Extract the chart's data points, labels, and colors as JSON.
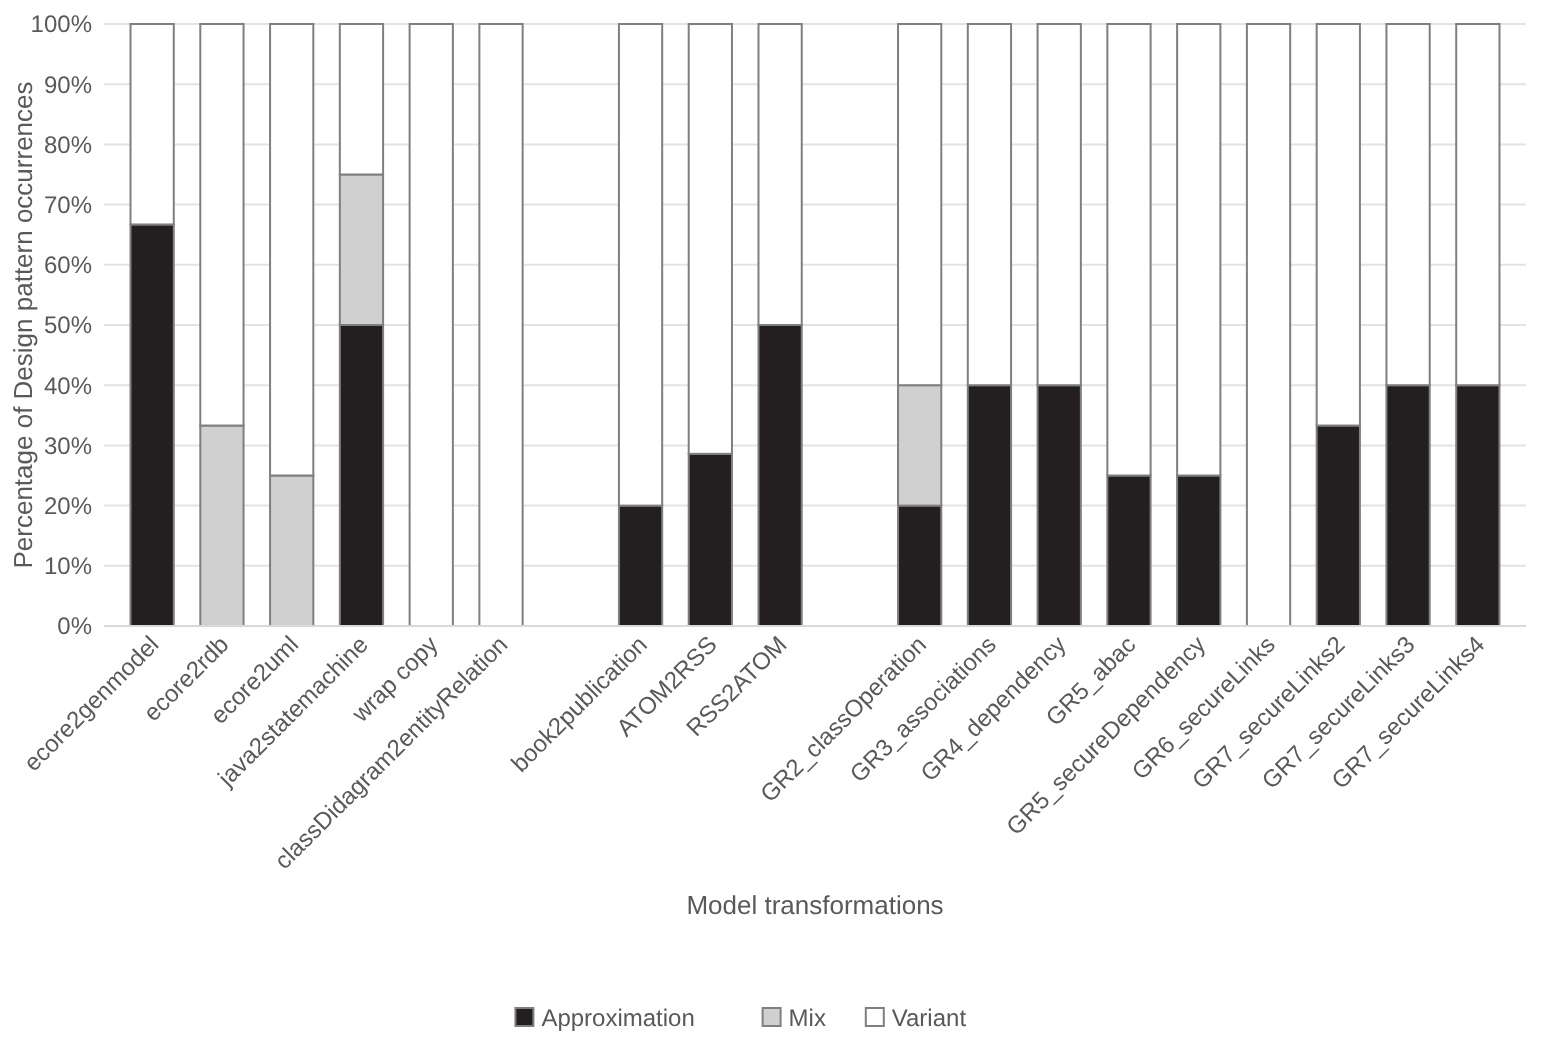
{
  "chart_data": {
    "type": "bar",
    "stacked": true,
    "xlabel": "Model transformations",
    "ylabel": "Percentage of Design pattern occurrences",
    "categories": [
      "ecore2genmodel",
      "ecore2rdb",
      "ecore2uml",
      "java2statemachine",
      "wrap copy",
      "classDidagram2entityRelation",
      null,
      "book2publication",
      "ATOM2RSS",
      "RSS2ATOM",
      null,
      "GR2_classOperation",
      "GR3_associations",
      "GR4_dependency",
      "GR5_abac",
      "GR5_secureDependency",
      "GR6_secureLinks",
      "GR7_secureLinks2",
      "GR7_secureLinks3",
      "GR7_secureLinks4"
    ],
    "series": [
      {
        "name": "Approximation",
        "color": "#231f20",
        "values": [
          66.7,
          0,
          0,
          50,
          0,
          0,
          null,
          20,
          28.6,
          50,
          null,
          20,
          40,
          40,
          25,
          25,
          0,
          33.3,
          40,
          40
        ]
      },
      {
        "name": "Mix",
        "color": "#d0d0d0",
        "values": [
          0,
          33.3,
          25,
          25,
          0,
          0,
          null,
          0,
          0,
          0,
          null,
          20,
          0,
          0,
          0,
          0,
          0,
          0,
          0,
          0
        ]
      },
      {
        "name": "Variant",
        "color": "#ffffff",
        "values": [
          33.3,
          66.7,
          75,
          25,
          100,
          100,
          null,
          80,
          71.4,
          50,
          null,
          60,
          60,
          60,
          75,
          75,
          100,
          66.7,
          60,
          60
        ]
      }
    ],
    "ylim": [
      0,
      100
    ],
    "yticks": [
      {
        "value": 0,
        "label": "0%"
      },
      {
        "value": 10,
        "label": "10%"
      },
      {
        "value": 20,
        "label": "20%"
      },
      {
        "value": 30,
        "label": "30%"
      },
      {
        "value": 40,
        "label": "40%"
      },
      {
        "value": 50,
        "label": "50%"
      },
      {
        "value": 60,
        "label": "60%"
      },
      {
        "value": 70,
        "label": "70%"
      },
      {
        "value": 80,
        "label": "80%"
      },
      {
        "value": 90,
        "label": "90%"
      },
      {
        "value": 100,
        "label": "100%"
      }
    ],
    "grid": "y",
    "legend": "bottom"
  }
}
